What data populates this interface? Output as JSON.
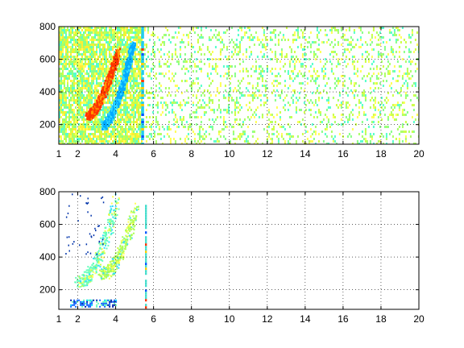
{
  "chart_data": [
    {
      "type": "heatmap",
      "title": "",
      "xlabel": "",
      "ylabel": "",
      "xlim": [
        1,
        20
      ],
      "ylim": [
        80,
        800
      ],
      "x_ticks": [
        1,
        2,
        4,
        6,
        8,
        10,
        12,
        14,
        16,
        18,
        20
      ],
      "x_tick_labels": [
        "1",
        "2",
        "4",
        "6",
        "8",
        "10",
        "12",
        "14",
        "16",
        "18",
        "20"
      ],
      "y_ticks": [
        200,
        400,
        600,
        800
      ],
      "y_tick_labels": [
        "200",
        "400",
        "600",
        "800"
      ],
      "grid": true,
      "colormap": "jet",
      "features": [
        {
          "kind": "dense-noise",
          "x": [
            1,
            5.4
          ],
          "y": [
            80,
            800
          ],
          "density": 0.82,
          "palette": [
            "#ffff55",
            "#ccff44",
            "#88ff88",
            "#55ffcc",
            "#ffee33",
            "#aaff66"
          ]
        },
        {
          "kind": "ridge-warm",
          "x": [
            2.5,
            4.1
          ],
          "y": [
            260,
            650
          ],
          "color": "#ff3300"
        },
        {
          "kind": "ridge-cool",
          "x": [
            3.3,
            4.9
          ],
          "y": [
            200,
            700
          ],
          "color": "#00aaff"
        },
        {
          "kind": "vertical-band",
          "x": [
            5.35,
            5.5
          ],
          "y": [
            80,
            800
          ],
          "color": "#22ccee"
        },
        {
          "kind": "sparse-noise",
          "x": [
            5.5,
            20
          ],
          "y": [
            80,
            800
          ],
          "density": 0.22,
          "palette": [
            "#ffff55",
            "#ccff44",
            "#88ff88",
            "#55ffcc",
            "#aaff66"
          ]
        }
      ]
    },
    {
      "type": "heatmap",
      "title": "",
      "xlabel": "",
      "ylabel": "",
      "xlim": [
        1,
        20
      ],
      "ylim": [
        80,
        800
      ],
      "x_ticks": [
        1,
        2,
        4,
        6,
        8,
        10,
        12,
        14,
        16,
        18,
        20
      ],
      "x_tick_labels": [
        "1",
        "2",
        "4",
        "6",
        "8",
        "10",
        "12",
        "14",
        "16",
        "18",
        "20"
      ],
      "y_ticks": [
        200,
        400,
        600,
        800
      ],
      "y_tick_labels": [
        "200",
        "400",
        "600",
        "800"
      ],
      "grid": true,
      "colormap": "jet",
      "features": [
        {
          "kind": "bottom-band",
          "x": [
            1.6,
            4.0
          ],
          "y": [
            100,
            140
          ],
          "color": "#1166ff"
        },
        {
          "kind": "curve-band",
          "x": [
            2.0,
            4.0
          ],
          "y": [
            250,
            760
          ],
          "color": "#66ffbb"
        },
        {
          "kind": "curve-band",
          "x": [
            3.2,
            5.0
          ],
          "y": [
            300,
            700
          ],
          "color": "#aaff55"
        },
        {
          "kind": "vertical-line",
          "x": [
            5.55,
            5.65
          ],
          "y": [
            80,
            720
          ],
          "color": "#44ddcc"
        },
        {
          "kind": "scatter-dots",
          "x": [
            1.3,
            3.4
          ],
          "y": [
            400,
            790
          ],
          "color": "#0033aa"
        }
      ]
    }
  ]
}
